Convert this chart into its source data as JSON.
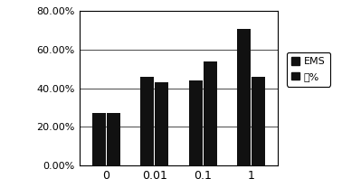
{
  "categories": [
    "0",
    "0.01",
    "0.1",
    "1"
  ],
  "series": [
    {
      "label": "EMS",
      "values": [
        0.27,
        0.46,
        0.44,
        0.71
      ],
      "color": "#111111"
    },
    {
      "label": "苗%",
      "values": [
        0.27,
        0.43,
        0.54,
        0.46
      ],
      "color": "#111111"
    }
  ],
  "ylim": [
    0.0,
    0.8
  ],
  "yticks": [
    0.0,
    0.2,
    0.4,
    0.6,
    0.8
  ],
  "ytick_labels": [
    "0.00%",
    "20.00%",
    "40.00%",
    "60.00%",
    "80.00%"
  ],
  "bar_width": 0.28,
  "background_color": "#ffffff"
}
